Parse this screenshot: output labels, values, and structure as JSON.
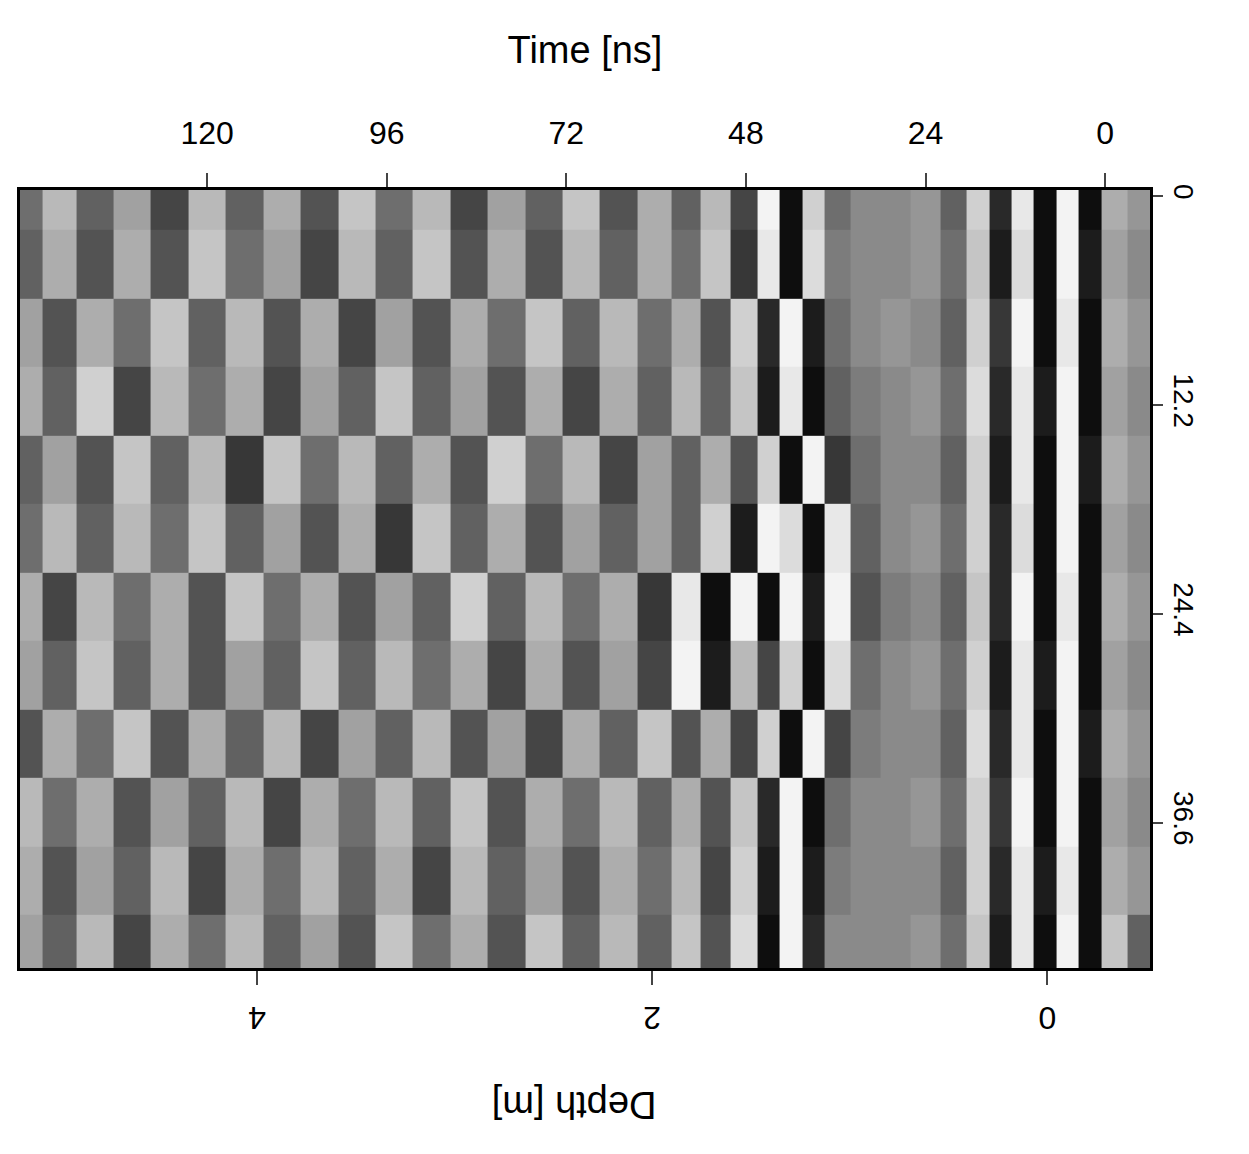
{
  "chart_data": {
    "type": "heatmap",
    "x_label": "Time [ns]",
    "x2_label": "Depth [m]",
    "xlim": [
      145,
      -6
    ],
    "xticks": [
      120,
      96,
      72,
      48,
      24,
      0
    ],
    "x2lim": [
      5.2,
      -0.52
    ],
    "x2ticks": [
      4,
      2,
      0
    ],
    "ylim": [
      45.1,
      -0.35
    ],
    "yticks": [
      0,
      12.2,
      24.4,
      36.6
    ],
    "zlim": [
      -1,
      1
    ],
    "x": [
      -5,
      -1,
      2,
      5,
      8,
      11,
      14,
      17,
      20,
      24,
      28,
      32,
      36,
      39,
      42,
      45,
      48,
      52,
      56,
      60,
      65,
      70,
      75,
      80,
      85,
      90,
      95,
      100,
      105,
      110,
      115,
      120,
      125,
      130,
      135,
      140,
      144
    ],
    "y": [
      0,
      4,
      8,
      12,
      16,
      20,
      24,
      28,
      32,
      36,
      40,
      44
    ],
    "z": [
      [
        0.1,
        0.3,
        -0.9,
        0.9,
        -0.9,
        0.8,
        -0.7,
        0.6,
        -0.3,
        0.1,
        0,
        0,
        -0.2,
        0.6,
        -0.9,
        0.9,
        -0.5,
        0.4,
        -0.3,
        0.3,
        -0.4,
        0.5,
        -0.3,
        0.2,
        -0.5,
        0.4,
        -0.2,
        0.5,
        -0.4,
        0.3,
        -0.3,
        0.4,
        -0.5,
        0.2,
        -0.3,
        0.4,
        -0.2
      ],
      [
        0,
        0.2,
        -0.8,
        0.9,
        -0.9,
        0.7,
        -0.8,
        0.5,
        -0.2,
        0.1,
        0,
        0,
        -0.1,
        0.7,
        -0.9,
        0.8,
        -0.6,
        0.5,
        -0.2,
        0.3,
        -0.3,
        0.4,
        -0.4,
        0.3,
        -0.4,
        0.5,
        -0.3,
        0.4,
        -0.5,
        0.2,
        -0.2,
        0.5,
        -0.4,
        0.3,
        -0.4,
        0.3,
        -0.3
      ],
      [
        0.1,
        0.3,
        -0.9,
        0.8,
        -0.9,
        0.9,
        -0.6,
        0.6,
        -0.3,
        0,
        0.1,
        0,
        -0.2,
        -0.8,
        0.9,
        -0.7,
        0.6,
        -0.4,
        0.3,
        -0.2,
        0.4,
        -0.3,
        0.5,
        -0.2,
        0.3,
        -0.4,
        0.2,
        -0.5,
        0.3,
        -0.4,
        0.4,
        -0.3,
        0.5,
        -0.2,
        0.3,
        -0.4,
        0.2
      ],
      [
        0,
        0.2,
        -0.9,
        0.9,
        -0.8,
        0.8,
        -0.7,
        0.7,
        -0.2,
        0.1,
        0,
        -0.1,
        -0.3,
        -0.9,
        0.8,
        -0.8,
        0.5,
        -0.3,
        0.4,
        -0.3,
        0.3,
        -0.5,
        0.3,
        -0.4,
        0.2,
        -0.3,
        0.5,
        -0.3,
        0.2,
        -0.5,
        0.3,
        -0.2,
        0.4,
        -0.5,
        0.6,
        -0.3,
        0.3
      ],
      [
        0.1,
        0.3,
        -0.8,
        0.9,
        -0.9,
        0.8,
        -0.8,
        0.6,
        -0.3,
        0,
        0,
        -0.2,
        -0.6,
        0.9,
        -0.9,
        0.6,
        -0.4,
        0.3,
        -0.3,
        0.2,
        -0.5,
        0.4,
        -0.2,
        0.6,
        -0.4,
        0.3,
        -0.3,
        0.4,
        -0.2,
        0.5,
        -0.6,
        0.4,
        -0.3,
        0.5,
        -0.4,
        0.2,
        -0.3
      ],
      [
        0,
        0.2,
        -0.9,
        0.9,
        -0.9,
        0.7,
        -0.7,
        0.6,
        -0.2,
        0.1,
        0,
        -0.3,
        0.8,
        -0.9,
        0.7,
        0.9,
        -0.8,
        0.6,
        -0.3,
        0.2,
        -0.3,
        0.2,
        -0.4,
        0.3,
        -0.3,
        0.5,
        -0.6,
        0.3,
        -0.4,
        0.2,
        -0.3,
        0.5,
        -0.2,
        0.4,
        -0.3,
        0.4,
        -0.2
      ],
      [
        0.1,
        0.3,
        -0.9,
        0.8,
        -0.9,
        0.9,
        -0.7,
        0.5,
        -0.3,
        0,
        -0.1,
        -0.4,
        0.9,
        -0.8,
        0.9,
        -0.9,
        0.9,
        -0.9,
        0.8,
        -0.6,
        0.3,
        -0.2,
        0.4,
        -0.3,
        0.6,
        -0.3,
        0.2,
        -0.4,
        0.3,
        -0.2,
        0.5,
        -0.4,
        0.3,
        -0.2,
        0.4,
        -0.5,
        0.3
      ],
      [
        0,
        0.2,
        -0.9,
        0.9,
        -0.8,
        0.8,
        -0.8,
        0.6,
        -0.2,
        0.1,
        0,
        -0.2,
        0.7,
        -0.9,
        0.6,
        -0.5,
        0.4,
        -0.8,
        0.9,
        -0.5,
        0.2,
        -0.4,
        0.3,
        -0.5,
        0.3,
        -0.2,
        0.4,
        -0.3,
        0.5,
        -0.3,
        0.2,
        -0.4,
        0.3,
        -0.3,
        0.5,
        -0.3,
        0.2
      ],
      [
        0.1,
        0.3,
        -0.8,
        0.9,
        -0.9,
        0.8,
        -0.7,
        0.7,
        -0.3,
        0,
        0,
        -0.1,
        -0.5,
        0.9,
        -0.9,
        0.6,
        -0.5,
        0.3,
        -0.4,
        0.5,
        -0.3,
        0.3,
        -0.5,
        0.2,
        -0.4,
        0.4,
        -0.3,
        0.2,
        -0.5,
        0.4,
        -0.3,
        0.3,
        -0.4,
        0.5,
        -0.2,
        0.3,
        -0.4
      ],
      [
        0,
        0.2,
        -0.9,
        0.9,
        -0.9,
        0.9,
        -0.6,
        0.6,
        -0.2,
        0.1,
        0,
        0,
        -0.2,
        -0.9,
        0.9,
        -0.7,
        0.5,
        -0.4,
        0.3,
        -0.3,
        0.4,
        -0.2,
        0.3,
        -0.4,
        0.5,
        -0.3,
        0.4,
        -0.2,
        0.3,
        -0.5,
        0.4,
        -0.3,
        0.2,
        -0.4,
        0.3,
        -0.2,
        0.4
      ],
      [
        0.1,
        0.3,
        -0.9,
        0.8,
        -0.8,
        0.8,
        -0.7,
        0.6,
        -0.3,
        0,
        0,
        0,
        -0.1,
        -0.8,
        0.9,
        -0.8,
        0.6,
        -0.5,
        0.4,
        -0.2,
        0.3,
        -0.4,
        0.2,
        -0.3,
        0.4,
        -0.5,
        0.3,
        -0.3,
        0.4,
        -0.2,
        0.3,
        -0.5,
        0.4,
        -0.3,
        0.2,
        -0.4,
        0.3
      ],
      [
        -0.3,
        0.5,
        -0.9,
        0.9,
        -0.9,
        0.8,
        -0.8,
        0.5,
        -0.2,
        0.1,
        0,
        0,
        0,
        -0.7,
        0.9,
        -0.9,
        0.7,
        -0.4,
        0.5,
        -0.3,
        0.4,
        -0.3,
        0.5,
        -0.4,
        0.3,
        -0.2,
        0.5,
        -0.4,
        0.2,
        -0.3,
        0.4,
        -0.2,
        0.3,
        -0.5,
        0.4,
        -0.3,
        0.2
      ]
    ]
  }
}
